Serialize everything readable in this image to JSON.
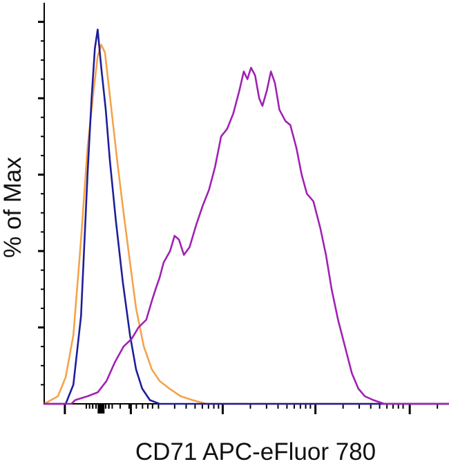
{
  "chart_data": {
    "type": "line",
    "title": "",
    "xlabel": "CD71 APC-eFluor 780",
    "ylabel": "% of Max",
    "x_scale": "log",
    "xlim": [
      0,
      100
    ],
    "ylim": [
      0,
      105
    ],
    "grid": false,
    "legend": "none",
    "tick_labels_shown": false,
    "series": [
      {
        "color": "#F4A349",
        "values": [
          [
            0,
            0
          ],
          [
            3.4,
            2
          ],
          [
            5.3,
            7
          ],
          [
            7.2,
            18
          ],
          [
            9.1,
            43
          ],
          [
            10.7,
            67
          ],
          [
            12.2,
            82
          ],
          [
            13.2,
            91
          ],
          [
            14.1,
            94
          ],
          [
            15.0,
            92
          ],
          [
            16.5,
            78
          ],
          [
            18.1,
            63
          ],
          [
            19.6,
            50
          ],
          [
            21.2,
            37
          ],
          [
            22.7,
            25
          ],
          [
            24.6,
            15
          ],
          [
            26.6,
            9
          ],
          [
            28.5,
            6
          ],
          [
            30.9,
            4
          ],
          [
            33.7,
            2
          ],
          [
            36.6,
            1
          ],
          [
            40.1,
            0
          ],
          [
            100,
            0
          ]
        ]
      },
      {
        "color": "#1E1E9A",
        "values": [
          [
            0,
            0
          ],
          [
            5.3,
            0
          ],
          [
            7.2,
            5
          ],
          [
            9.1,
            23
          ],
          [
            10.7,
            60
          ],
          [
            11.7,
            80
          ],
          [
            12.5,
            93
          ],
          [
            13.2,
            98
          ],
          [
            14.1,
            88
          ],
          [
            15.2,
            77
          ],
          [
            16.2,
            64
          ],
          [
            17.7,
            48
          ],
          [
            19.4,
            32
          ],
          [
            21.2,
            18
          ],
          [
            22.7,
            9
          ],
          [
            24.2,
            4
          ],
          [
            26.1,
            1
          ],
          [
            28.5,
            0
          ],
          [
            100,
            0
          ]
        ]
      },
      {
        "color": "#A020B4",
        "values": [
          [
            0,
            0
          ],
          [
            6.7,
            0
          ],
          [
            7.7,
            1
          ],
          [
            10.7,
            2
          ],
          [
            13.2,
            3
          ],
          [
            15.4,
            6
          ],
          [
            17.5,
            11
          ],
          [
            19.6,
            15
          ],
          [
            21.6,
            17
          ],
          [
            23.3,
            20
          ],
          [
            25.2,
            22
          ],
          [
            26.6,
            27
          ],
          [
            27.5,
            30
          ],
          [
            28.5,
            33
          ],
          [
            29.5,
            37
          ],
          [
            31.1,
            40
          ],
          [
            32.2,
            44
          ],
          [
            33.3,
            43
          ],
          [
            34.5,
            39
          ],
          [
            35.9,
            41
          ],
          [
            37.6,
            47
          ],
          [
            39.2,
            52
          ],
          [
            40.7,
            56
          ],
          [
            42.2,
            62
          ],
          [
            43.7,
            70
          ],
          [
            45.2,
            72
          ],
          [
            46.7,
            76
          ],
          [
            48.2,
            82
          ],
          [
            49.3,
            87
          ],
          [
            50.2,
            85
          ],
          [
            51.1,
            88
          ],
          [
            52.1,
            86
          ],
          [
            53.1,
            80
          ],
          [
            53.9,
            78
          ],
          [
            55.0,
            82
          ],
          [
            56.0,
            87
          ],
          [
            57.0,
            84
          ],
          [
            58.1,
            77
          ],
          [
            59.6,
            74
          ],
          [
            60.8,
            73
          ],
          [
            62.3,
            67
          ],
          [
            63.6,
            60
          ],
          [
            64.9,
            55
          ],
          [
            66.5,
            53
          ],
          [
            68.2,
            46
          ],
          [
            69.6,
            39
          ],
          [
            71.0,
            30
          ],
          [
            72.6,
            22
          ],
          [
            74.3,
            15
          ],
          [
            76.0,
            8
          ],
          [
            77.6,
            4
          ],
          [
            79.2,
            2
          ],
          [
            81.3,
            1
          ],
          [
            84.0,
            0
          ],
          [
            100,
            0
          ]
        ]
      }
    ]
  }
}
